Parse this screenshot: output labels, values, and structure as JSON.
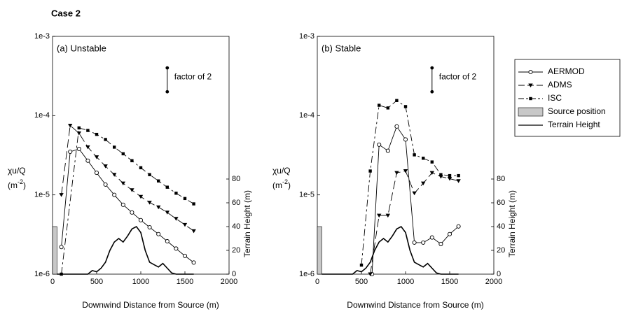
{
  "title": "Case 2",
  "legend": {
    "position": "right"
  },
  "chart_data": [
    {
      "type": "line",
      "panel": "(a) Unstable",
      "xlabel": "Downwind Distance  from Source (m)",
      "ylabel": [
        "χu/Q",
        "(m",
        "-2",
        ")"
      ],
      "y2label": "Terrain Height (m)",
      "xlim": [
        0,
        2000
      ],
      "xticks": [
        0,
        500,
        1000,
        1500,
        2000
      ],
      "yscale": "log",
      "ylim": [
        1e-06,
        0.001
      ],
      "yticks": [
        {
          "value": 1e-06,
          "label": "1e-6"
        },
        {
          "value": 1e-05,
          "label": "1e-5"
        },
        {
          "value": 0.0001,
          "label": "1e-4"
        },
        {
          "value": 0.001,
          "label": "1e-3"
        }
      ],
      "y2lim": [
        0,
        200
      ],
      "y2ticks": [
        0,
        20,
        40,
        60,
        80
      ],
      "series": [
        {
          "name": "AERMOD",
          "color": "#000000",
          "dash": "none",
          "marker": "circle",
          "x": [
            100,
            200,
            300,
            400,
            500,
            600,
            700,
            800,
            900,
            1000,
            1100,
            1200,
            1300,
            1400,
            1500,
            1600
          ],
          "values": [
            2.2e-06,
            3.5e-05,
            3.8e-05,
            2.7e-05,
            1.9e-05,
            1.35e-05,
            1e-05,
            7.5e-06,
            6e-06,
            4.8e-06,
            3.9e-06,
            3.2e-06,
            2.6e-06,
            2.1e-06,
            1.7e-06,
            1.4e-06
          ]
        },
        {
          "name": "ADMS",
          "color": "#000000",
          "dash": "12,5",
          "marker": "triangle",
          "x": [
            100,
            200,
            300,
            400,
            500,
            600,
            700,
            800,
            900,
            1000,
            1100,
            1200,
            1300,
            1400,
            1500,
            1600
          ],
          "values": [
            1e-05,
            7.5e-05,
            6e-05,
            4e-05,
            3e-05,
            2.3e-05,
            1.8e-05,
            1.4e-05,
            1.15e-05,
            9.5e-06,
            8e-06,
            7e-06,
            6e-06,
            5e-06,
            4.2e-06,
            3.5e-06
          ]
        },
        {
          "name": "ISC",
          "color": "#000000",
          "dash": "10,4,3,4",
          "marker": "square",
          "x": [
            100,
            300,
            400,
            500,
            600,
            700,
            800,
            900,
            1000,
            1100,
            1200,
            1300,
            1400,
            1500,
            1600
          ],
          "values": [
            1e-06,
            7e-05,
            6.5e-05,
            5.8e-05,
            5e-05,
            4e-05,
            3.3e-05,
            2.7e-05,
            2.2e-05,
            1.8e-05,
            1.5e-05,
            1.25e-05,
            1.05e-05,
            9e-06,
            7.7e-06
          ]
        },
        {
          "name": "Terrain Height",
          "color": "#000000",
          "dash": "none",
          "marker": "none",
          "axis": "y2",
          "x": [
            50,
            400,
            450,
            500,
            550,
            600,
            650,
            700,
            750,
            800,
            850,
            900,
            950,
            1000,
            1050,
            1100,
            1150,
            1200,
            1250,
            1300,
            1350,
            1400,
            1600
          ],
          "values": [
            0,
            0,
            3,
            2,
            5,
            10,
            20,
            27,
            30,
            27,
            32,
            38,
            40,
            35,
            20,
            10,
            8,
            6,
            9,
            5,
            1,
            0,
            0
          ]
        }
      ],
      "source": {
        "name": "Source position",
        "color": "#c8c8c8",
        "x": [
          0,
          50
        ],
        "height": 40
      },
      "annotation": {
        "text": "factor of 2",
        "x": 1300,
        "y": [
          0.0002,
          0.0004
        ]
      }
    },
    {
      "type": "line",
      "panel": "(b) Stable",
      "xlabel": "Downwind Distance from Source (m)",
      "ylabel": [
        "χu/Q",
        "(m",
        "-2",
        ")"
      ],
      "y2label": "Terrain Height (m)",
      "xlim": [
        0,
        2000
      ],
      "xticks": [
        0,
        500,
        1000,
        1500,
        2000
      ],
      "yscale": "log",
      "ylim": [
        1e-06,
        0.001
      ],
      "yticks": [
        {
          "value": 1e-06,
          "label": "1e-6"
        },
        {
          "value": 1e-05,
          "label": "1e-5"
        },
        {
          "value": 0.0001,
          "label": "1e-4"
        },
        {
          "value": 0.001,
          "label": "1e-3"
        }
      ],
      "y2lim": [
        0,
        200
      ],
      "y2ticks": [
        0,
        20,
        40,
        60,
        80
      ],
      "series": [
        {
          "color": "#000000",
          "dash": "none",
          "marker": "circle",
          "x": [
            620,
            700,
            800,
            900,
            1000,
            1100,
            1200,
            1300,
            1400,
            1500,
            1600
          ],
          "values": [
            1e-06,
            4.3e-05,
            3.6e-05,
            7.3e-05,
            5e-05,
            2.5e-06,
            2.5e-06,
            2.9e-06,
            2.4e-06,
            3.2e-06,
            4e-06
          ]
        },
        {
          "color": "#000000",
          "dash": "12,5",
          "marker": "triangle",
          "x": [
            600,
            700,
            800,
            900,
            1000,
            1100,
            1200,
            1300,
            1400,
            1500,
            1600
          ],
          "values": [
            1e-06,
            5.5e-06,
            5.5e-06,
            1.9e-05,
            2e-05,
            1.05e-05,
            1.4e-05,
            1.9e-05,
            1.7e-05,
            1.6e-05,
            1.5e-05
          ]
        },
        {
          "color": "#000000",
          "dash": "10,4,3,4",
          "marker": "square",
          "x": [
            500,
            600,
            700,
            800,
            900,
            1000,
            1100,
            1200,
            1300,
            1400,
            1500,
            1600
          ],
          "values": [
            1.3e-06,
            2e-05,
            0.000135,
            0.000125,
            0.000155,
            0.00013,
            3.2e-05,
            2.9e-05,
            2.6e-05,
            1.8e-05,
            1.75e-05,
            1.75e-05
          ]
        },
        {
          "color": "#000000",
          "dash": "none",
          "marker": "none",
          "axis": "y2",
          "x": [
            50,
            400,
            450,
            500,
            550,
            600,
            650,
            700,
            750,
            800,
            850,
            900,
            950,
            1000,
            1050,
            1100,
            1150,
            1200,
            1250,
            1300,
            1350,
            1400,
            1600
          ],
          "values": [
            0,
            0,
            3,
            2,
            5,
            10,
            20,
            27,
            30,
            27,
            32,
            38,
            40,
            35,
            20,
            10,
            8,
            6,
            9,
            5,
            1,
            0,
            0
          ]
        }
      ],
      "source": {
        "color": "#c8c8c8",
        "x": [
          0,
          50
        ],
        "height": 40
      },
      "annotation": {
        "text": "factor of 2",
        "x": 1300,
        "y": [
          0.0002,
          0.0004
        ]
      }
    }
  ]
}
